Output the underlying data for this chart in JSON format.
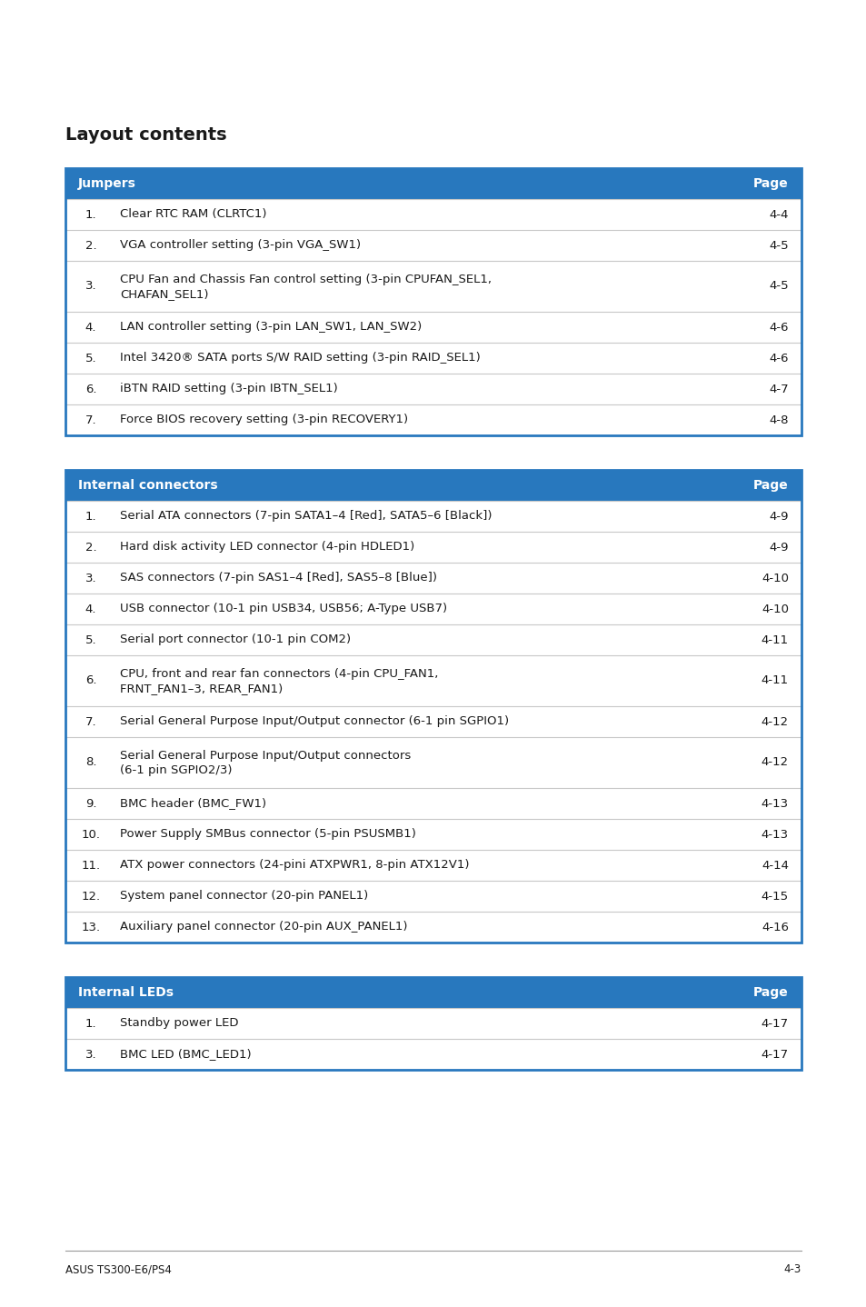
{
  "title": "Layout contents",
  "header_bg": "#2878be",
  "header_text_color": "#ffffff",
  "table_border_color": "#2878be",
  "row_divider_color": "#c8c8c8",
  "body_text_color": "#1a1a1a",
  "page_bg": "#ffffff",
  "footer_text": "ASUS TS300-E6/PS4",
  "footer_page": "4-3",
  "tables": [
    {
      "header": [
        "Jumpers",
        "Page"
      ],
      "rows": [
        [
          "1.",
          "Clear RTC RAM (CLRTC1)",
          "4-4"
        ],
        [
          "2.",
          "VGA controller setting (3-pin VGA_SW1)",
          "4-5"
        ],
        [
          "3.",
          "CPU Fan and Chassis Fan control setting (3-pin CPUFAN_SEL1,\nCHAFAN_SEL1)",
          "4-5"
        ],
        [
          "4.",
          "LAN controller setting (3-pin LAN_SW1, LAN_SW2)",
          "4-6"
        ],
        [
          "5.",
          "Intel 3420® SATA ports S/W RAID setting (3-pin RAID_SEL1)",
          "4-6"
        ],
        [
          "6.",
          "iBTN RAID setting (3-pin IBTN_SEL1)",
          "4-7"
        ],
        [
          "7.",
          "Force BIOS recovery setting (3-pin RECOVERY1)",
          "4-8"
        ]
      ]
    },
    {
      "header": [
        "Internal connectors",
        "Page"
      ],
      "rows": [
        [
          "1.",
          "Serial ATA connectors (7-pin SATA1–4 [Red], SATA5–6 [Black])",
          "4-9"
        ],
        [
          "2.",
          "Hard disk activity LED connector (4-pin HDLED1)",
          "4-9"
        ],
        [
          "3.",
          "SAS connectors (7-pin SAS1–4 [Red], SAS5–8 [Blue])",
          "4-10"
        ],
        [
          "4.",
          "USB connector (10-1 pin USB34, USB56; A-Type USB7)",
          "4-10"
        ],
        [
          "5.",
          "Serial port connector (10-1 pin COM2)",
          "4-11"
        ],
        [
          "6.",
          "CPU, front and rear fan connectors (4-pin CPU_FAN1,\nFRNT_FAN1–3, REAR_FAN1)",
          "4-11"
        ],
        [
          "7.",
          "Serial General Purpose Input/Output connector (6-1 pin SGPIO1)",
          "4-12"
        ],
        [
          "8.",
          "Serial General Purpose Input/Output connectors\n(6-1 pin SGPIO2/3)",
          "4-12"
        ],
        [
          "9.",
          "BMC header (BMC_FW1)",
          "4-13"
        ],
        [
          "10.",
          "Power Supply SMBus connector (5-pin PSUSMB1)",
          "4-13"
        ],
        [
          "11.",
          "ATX power connectors (24-pini ATXPWR1, 8-pin ATX12V1)",
          "4-14"
        ],
        [
          "12.",
          "System panel connector (20-pin PANEL1)",
          "4-15"
        ],
        [
          "13.",
          "Auxiliary panel connector (20-pin AUX_PANEL1)",
          "4-16"
        ]
      ]
    },
    {
      "header": [
        "Internal LEDs",
        "Page"
      ],
      "rows": [
        [
          "1.",
          "Standby power LED",
          "4-17"
        ],
        [
          "3.",
          "BMC LED (BMC_LED1)",
          "4-17"
        ]
      ]
    }
  ]
}
